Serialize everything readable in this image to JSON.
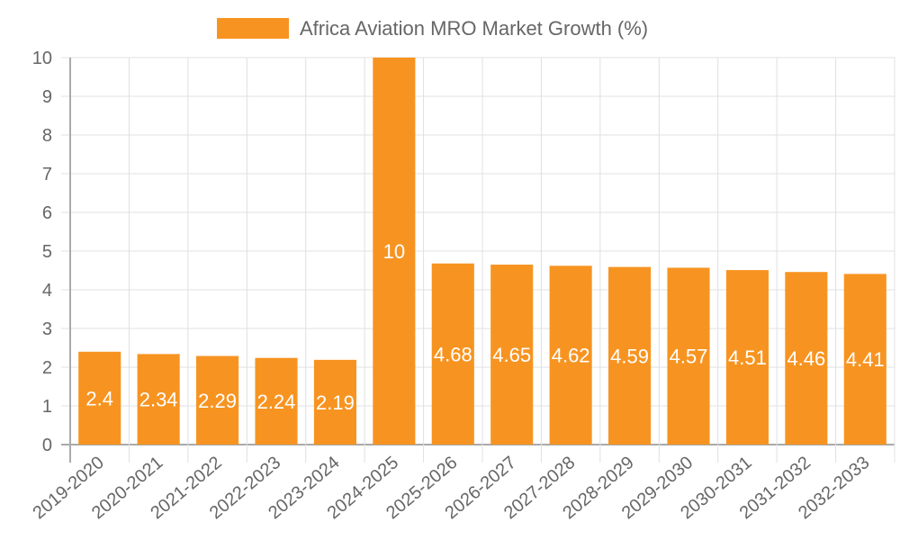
{
  "chart_data": {
    "type": "bar",
    "title": "",
    "xlabel": "",
    "ylabel": "",
    "ylim": [
      0,
      10
    ],
    "yticks": [
      "0",
      "1",
      "2",
      "3",
      "4",
      "5",
      "6",
      "7",
      "8",
      "9",
      "10"
    ],
    "grid": true,
    "legend_position": "top",
    "categories": [
      "2019-2020",
      "2020-2021",
      "2021-2022",
      "2022-2023",
      "2023-2024",
      "2024-2025",
      "2025-2026",
      "2026-2027",
      "2027-2028",
      "2028-2029",
      "2029-2030",
      "2030-2031",
      "2031-2032",
      "2032-2033"
    ],
    "series": [
      {
        "name": "Africa Aviation MRO Market Growth (%)",
        "color": "#f79421",
        "values": [
          2.4,
          2.34,
          2.29,
          2.24,
          2.19,
          10,
          4.68,
          4.65,
          4.62,
          4.59,
          4.57,
          4.51,
          4.46,
          4.41
        ],
        "labels": [
          "2.4",
          "2.34",
          "2.29",
          "2.24",
          "2.19",
          "10",
          "4.68",
          "4.65",
          "4.62",
          "4.59",
          "4.57",
          "4.51",
          "4.46",
          "4.41"
        ]
      }
    ]
  }
}
